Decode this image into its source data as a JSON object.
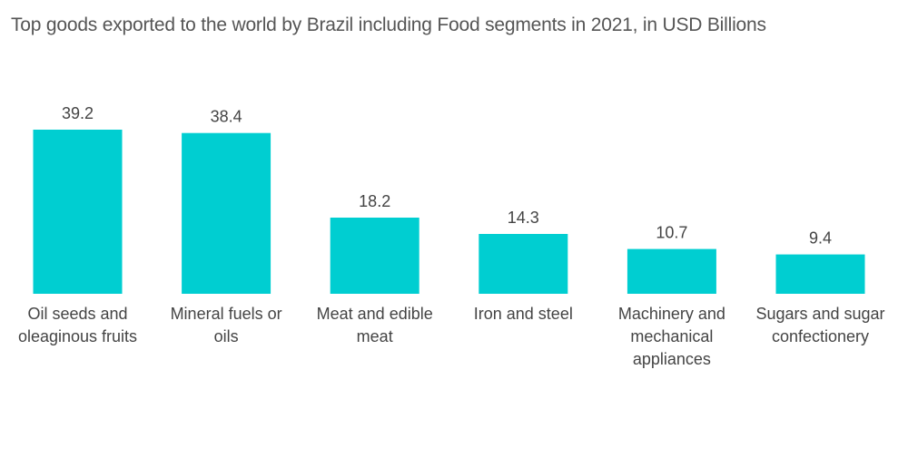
{
  "chart_data": {
    "type": "bar",
    "title": "Top goods exported to the world by Brazil including Food segments in 2021, in USD Billions",
    "categories": [
      [
        "Oil seeds and",
        "oleaginous fruits"
      ],
      [
        "Mineral fuels or",
        "oils"
      ],
      [
        "Meat and edible",
        "meat"
      ],
      [
        "Iron and steel"
      ],
      [
        "Machinery and",
        "mechanical",
        "appliances"
      ],
      [
        "Sugars and sugar",
        "confectionery"
      ]
    ],
    "values": [
      39.2,
      38.4,
      18.2,
      14.3,
      10.7,
      9.4
    ],
    "value_labels": [
      "39.2",
      "38.4",
      "18.2",
      "14.3",
      "10.7",
      "9.4"
    ],
    "ylim": [
      0,
      39.2
    ],
    "grid": false,
    "bar_color": "#00CED1",
    "text_color": "#444444",
    "title_color": "#555555"
  }
}
